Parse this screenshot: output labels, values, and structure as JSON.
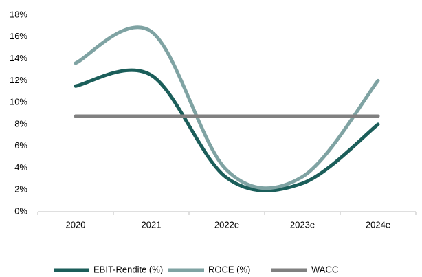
{
  "chart_data": {
    "type": "line",
    "categories": [
      "2020",
      "2021",
      "2022e",
      "2023e",
      "2024e"
    ],
    "series": [
      {
        "name": "EBIT-Rendite (%)",
        "color": "#1b5e5a",
        "values": [
          11.5,
          12.5,
          3.1,
          2.6,
          8.0
        ]
      },
      {
        "name": "ROCE (%)",
        "color": "#7fa3a3",
        "values": [
          13.6,
          16.5,
          3.8,
          3.2,
          12.0
        ]
      },
      {
        "name": "WACC",
        "color": "#808080",
        "values": [
          8.75,
          8.75,
          8.75,
          8.75,
          8.75
        ]
      }
    ],
    "ylim": [
      0,
      18
    ],
    "yticks": [
      {
        "value": 0,
        "label": "0%"
      },
      {
        "value": 2,
        "label": "2%"
      },
      {
        "value": 4,
        "label": "4%"
      },
      {
        "value": 6,
        "label": "6%"
      },
      {
        "value": 8,
        "label": "8%"
      },
      {
        "value": 10,
        "label": "10%"
      },
      {
        "value": 12,
        "label": "12%"
      },
      {
        "value": 14,
        "label": "14%"
      },
      {
        "value": 16,
        "label": "16%"
      },
      {
        "value": 18,
        "label": "18%"
      }
    ],
    "grid": false,
    "smooth": true,
    "legend": "bottom"
  }
}
